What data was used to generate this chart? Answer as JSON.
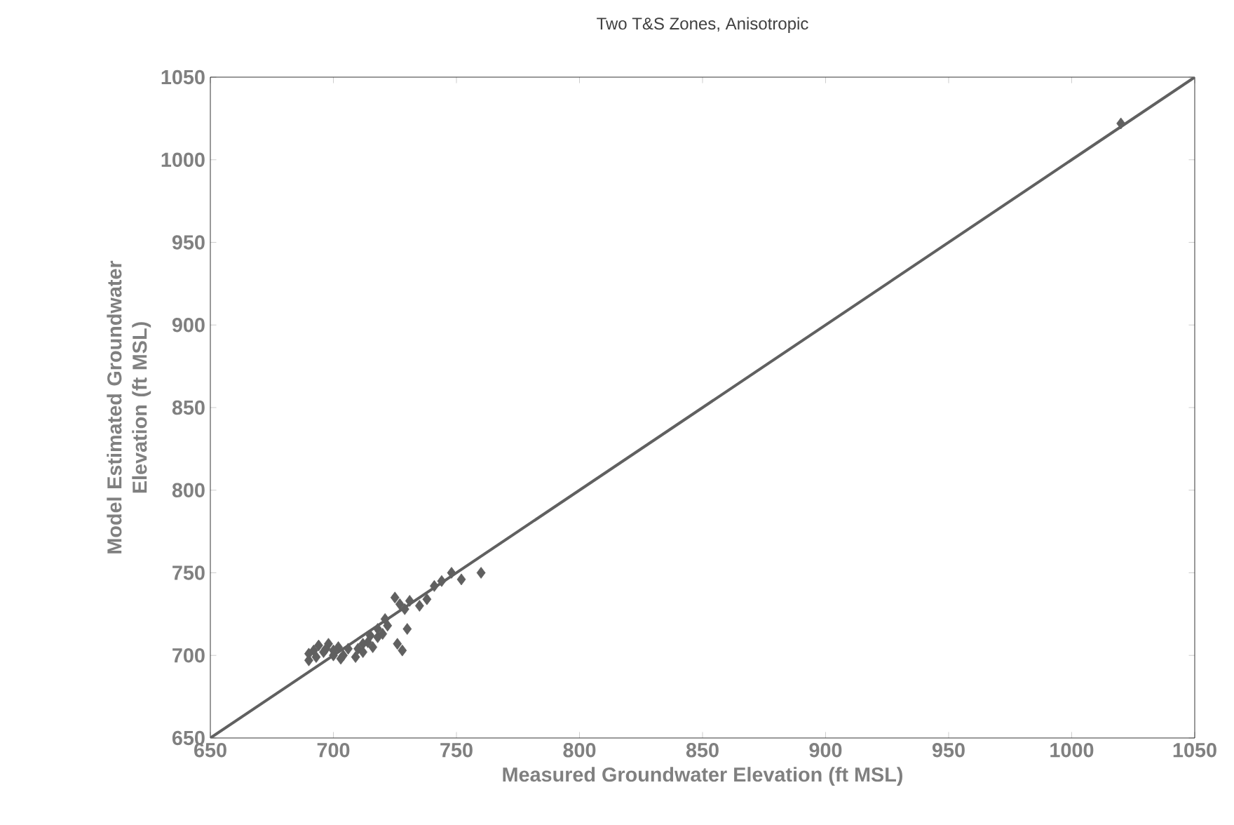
{
  "chart_data": {
    "type": "scatter",
    "title": "Two T&S Zones, Anisotropic",
    "xlabel": "Measured Groundwater Elevation (ft MSL)",
    "ylabel": "Model Estimated Groundwater Elevation (ft MSL)",
    "xlim": [
      650,
      1050
    ],
    "ylim": [
      650,
      1050
    ],
    "xticks": [
      650,
      700,
      750,
      800,
      850,
      900,
      950,
      1000,
      1050
    ],
    "yticks": [
      650,
      700,
      750,
      800,
      850,
      900,
      950,
      1000,
      1050
    ],
    "grid": false,
    "series": [
      {
        "marker": "diamond",
        "color": "#606060",
        "x": [
          690,
          692,
          694,
          696,
          698,
          700,
          702,
          704,
          710,
          712,
          714,
          716,
          718,
          720,
          722,
          690,
          693,
          697,
          700,
          703,
          706,
          709,
          712,
          715,
          718,
          721,
          725,
          727,
          729,
          731,
          735,
          738,
          741,
          744,
          748,
          752,
          760,
          726,
          728,
          730,
          1020
        ],
        "values": [
          697,
          703,
          706,
          702,
          707,
          700,
          705,
          700,
          704,
          702,
          708,
          705,
          711,
          713,
          718,
          701,
          699,
          704,
          703,
          698,
          704,
          699,
          707,
          712,
          716,
          722,
          735,
          731,
          728,
          733,
          730,
          734,
          742,
          745,
          750,
          746,
          750,
          707,
          703,
          716,
          1022
        ]
      },
      {
        "type": "line",
        "marker": "none",
        "color": "#606060",
        "x": [
          650,
          1050
        ],
        "values": [
          650,
          1050
        ]
      }
    ]
  }
}
